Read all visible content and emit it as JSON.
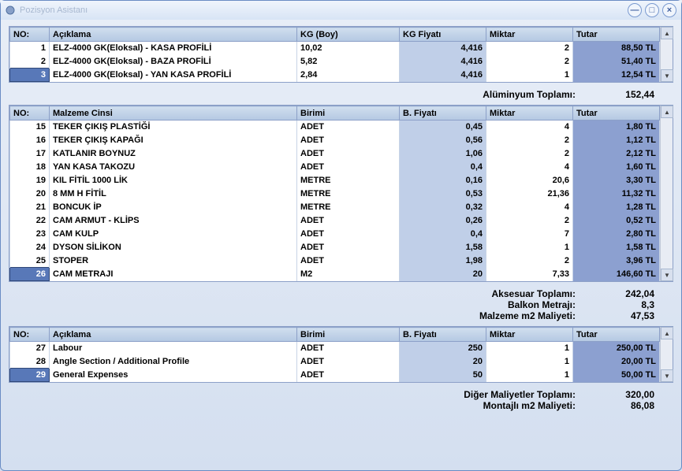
{
  "window": {
    "title": "Pozisyon Asistanı"
  },
  "table1": {
    "headers": {
      "no": "NO:",
      "desc": "Açıklama",
      "unit": "KG (Boy)",
      "price": "KG Fiyatı",
      "qty": "Miktar",
      "total": "Tutar"
    },
    "rows": [
      {
        "no": "1",
        "desc": "ELZ-4000 GK(Eloksal) - KASA PROFİLİ",
        "unit": "10,02",
        "price": "4,416",
        "qty": "2",
        "total": "88,50 TL",
        "selected": false
      },
      {
        "no": "2",
        "desc": "ELZ-4000 GK(Eloksal) - BAZA PROFİLİ",
        "unit": "5,82",
        "price": "4,416",
        "qty": "2",
        "total": "51,40 TL",
        "selected": false
      },
      {
        "no": "3",
        "desc": "ELZ-4000 GK(Eloksal) - YAN KASA PROFİLİ",
        "unit": "2,84",
        "price": "4,416",
        "qty": "1",
        "total": "12,54 TL",
        "selected": true
      }
    ]
  },
  "summary1": [
    {
      "label": "Alüminyum Toplamı:",
      "value": "152,44"
    }
  ],
  "table2": {
    "headers": {
      "no": "NO:",
      "desc": "Malzeme Cinsi",
      "unit": "Birimi",
      "price": "B. Fiyatı",
      "qty": "Miktar",
      "total": "Tutar"
    },
    "rows": [
      {
        "no": "15",
        "desc": "TEKER ÇIKIŞ PLASTİĞİ",
        "unit": "ADET",
        "price": "0,45",
        "qty": "4",
        "total": "1,80 TL",
        "selected": false
      },
      {
        "no": "16",
        "desc": "TEKER ÇIKIŞ KAPAĞI",
        "unit": "ADET",
        "price": "0,56",
        "qty": "2",
        "total": "1,12 TL",
        "selected": false
      },
      {
        "no": "17",
        "desc": "KATLANIR BOYNUZ",
        "unit": "ADET",
        "price": "1,06",
        "qty": "2",
        "total": "2,12 TL",
        "selected": false
      },
      {
        "no": "18",
        "desc": "YAN KASA TAKOZU",
        "unit": "ADET",
        "price": "0,4",
        "qty": "4",
        "total": "1,60 TL",
        "selected": false
      },
      {
        "no": "19",
        "desc": "KIL FİTİL 1000 LİK",
        "unit": "METRE",
        "price": "0,16",
        "qty": "20,6",
        "total": "3,30 TL",
        "selected": false
      },
      {
        "no": "20",
        "desc": "8 MM H FİTİL",
        "unit": "METRE",
        "price": "0,53",
        "qty": "21,36",
        "total": "11,32 TL",
        "selected": false
      },
      {
        "no": "21",
        "desc": "BONCUK İP",
        "unit": "METRE",
        "price": "0,32",
        "qty": "4",
        "total": "1,28 TL",
        "selected": false
      },
      {
        "no": "22",
        "desc": "CAM ARMUT - KLİPS",
        "unit": "ADET",
        "price": "0,26",
        "qty": "2",
        "total": "0,52 TL",
        "selected": false
      },
      {
        "no": "23",
        "desc": "CAM KULP",
        "unit": "ADET",
        "price": "0,4",
        "qty": "7",
        "total": "2,80 TL",
        "selected": false
      },
      {
        "no": "24",
        "desc": "DYSON SİLİKON",
        "unit": "ADET",
        "price": "1,58",
        "qty": "1",
        "total": "1,58 TL",
        "selected": false
      },
      {
        "no": "25",
        "desc": "STOPER",
        "unit": "ADET",
        "price": "1,98",
        "qty": "2",
        "total": "3,96 TL",
        "selected": false
      },
      {
        "no": "26",
        "desc": "CAM METRAJI",
        "unit": "M2",
        "price": "20",
        "qty": "7,33",
        "total": "146,60 TL",
        "selected": true
      }
    ]
  },
  "summary2": [
    {
      "label": "Aksesuar Toplamı:",
      "value": "242,04"
    },
    {
      "label": "Balkon Metrajı:",
      "value": "8,3"
    },
    {
      "label": "Malzeme m2  Maliyeti:",
      "value": "47,53"
    }
  ],
  "table3": {
    "headers": {
      "no": "NO:",
      "desc": "Açıklama",
      "unit": "Birimi",
      "price": "B. Fiyatı",
      "qty": "Miktar",
      "total": "Tutar"
    },
    "rows": [
      {
        "no": "27",
        "desc": "Labour",
        "unit": "ADET",
        "price": "250",
        "qty": "1",
        "total": "250,00 TL",
        "selected": false
      },
      {
        "no": "28",
        "desc": "Angle Section / Additional Profile",
        "unit": "ADET",
        "price": "20",
        "qty": "1",
        "total": "20,00 TL",
        "selected": false
      },
      {
        "no": "29",
        "desc": "General Expenses",
        "unit": "ADET",
        "price": "50",
        "qty": "1",
        "total": "50,00 TL",
        "selected": true
      }
    ]
  },
  "summary3": [
    {
      "label": "Diğer Maliyetler Toplamı:",
      "value": "320,00"
    },
    {
      "label": "Montajlı m2  Maliyeti:",
      "value": "86,08"
    }
  ]
}
